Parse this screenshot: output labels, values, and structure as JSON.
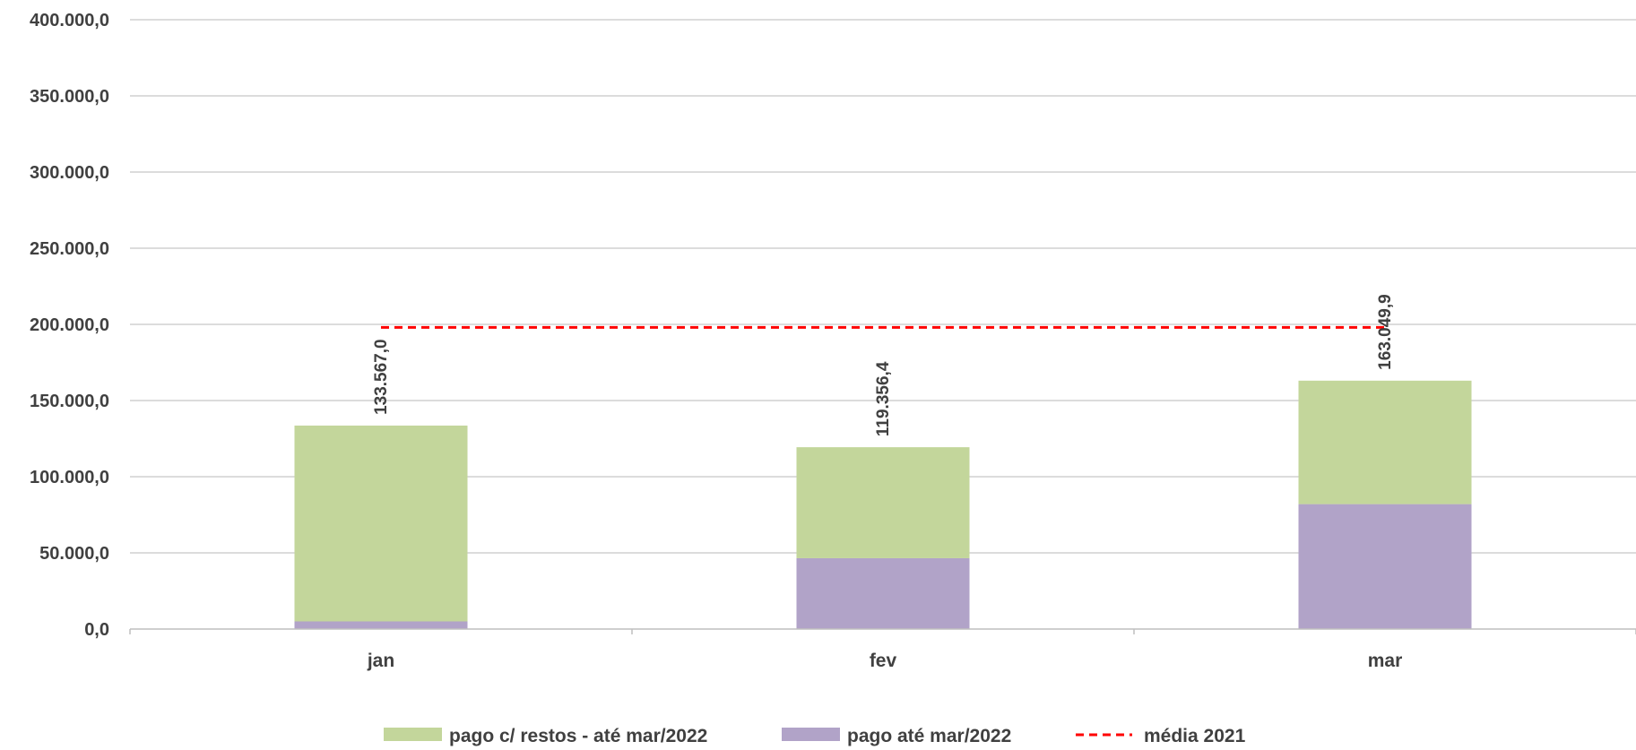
{
  "chart_data": {
    "type": "bar",
    "stacked": true,
    "categories": [
      "jan",
      "fev",
      "mar"
    ],
    "series": [
      {
        "name": "pago até mar/2022",
        "values": [
          5000,
          46500,
          82000
        ],
        "color": "#b1a3c8"
      },
      {
        "name": "pago c/ restos - até mar/2022",
        "values": [
          128567,
          72856.4,
          81049.9
        ],
        "color": "#c3d69b"
      }
    ],
    "totals": [
      133567.0,
      119356.4,
      163049.9
    ],
    "total_labels": [
      "133.567,0",
      "119.356,4",
      "163.049,9"
    ],
    "reference_line": {
      "name": "média 2021",
      "value": 198000,
      "color": "#ff0000",
      "style": "dashed"
    },
    "ylim": [
      0,
      400000
    ],
    "yticks": [
      0,
      50000,
      100000,
      150000,
      200000,
      250000,
      300000,
      350000,
      400000
    ],
    "ytick_labels": [
      "0,0",
      "50.000,0",
      "100.000,0",
      "150.000,0",
      "200.000,0",
      "250.000,0",
      "300.000,0",
      "350.000,0",
      "400.000,0"
    ],
    "grid": true,
    "legend_position": "bottom",
    "legend": [
      "pago c/ restos - até mar/2022",
      "pago até mar/2022",
      "média 2021"
    ],
    "title": "",
    "xlabel": "",
    "ylabel": ""
  }
}
